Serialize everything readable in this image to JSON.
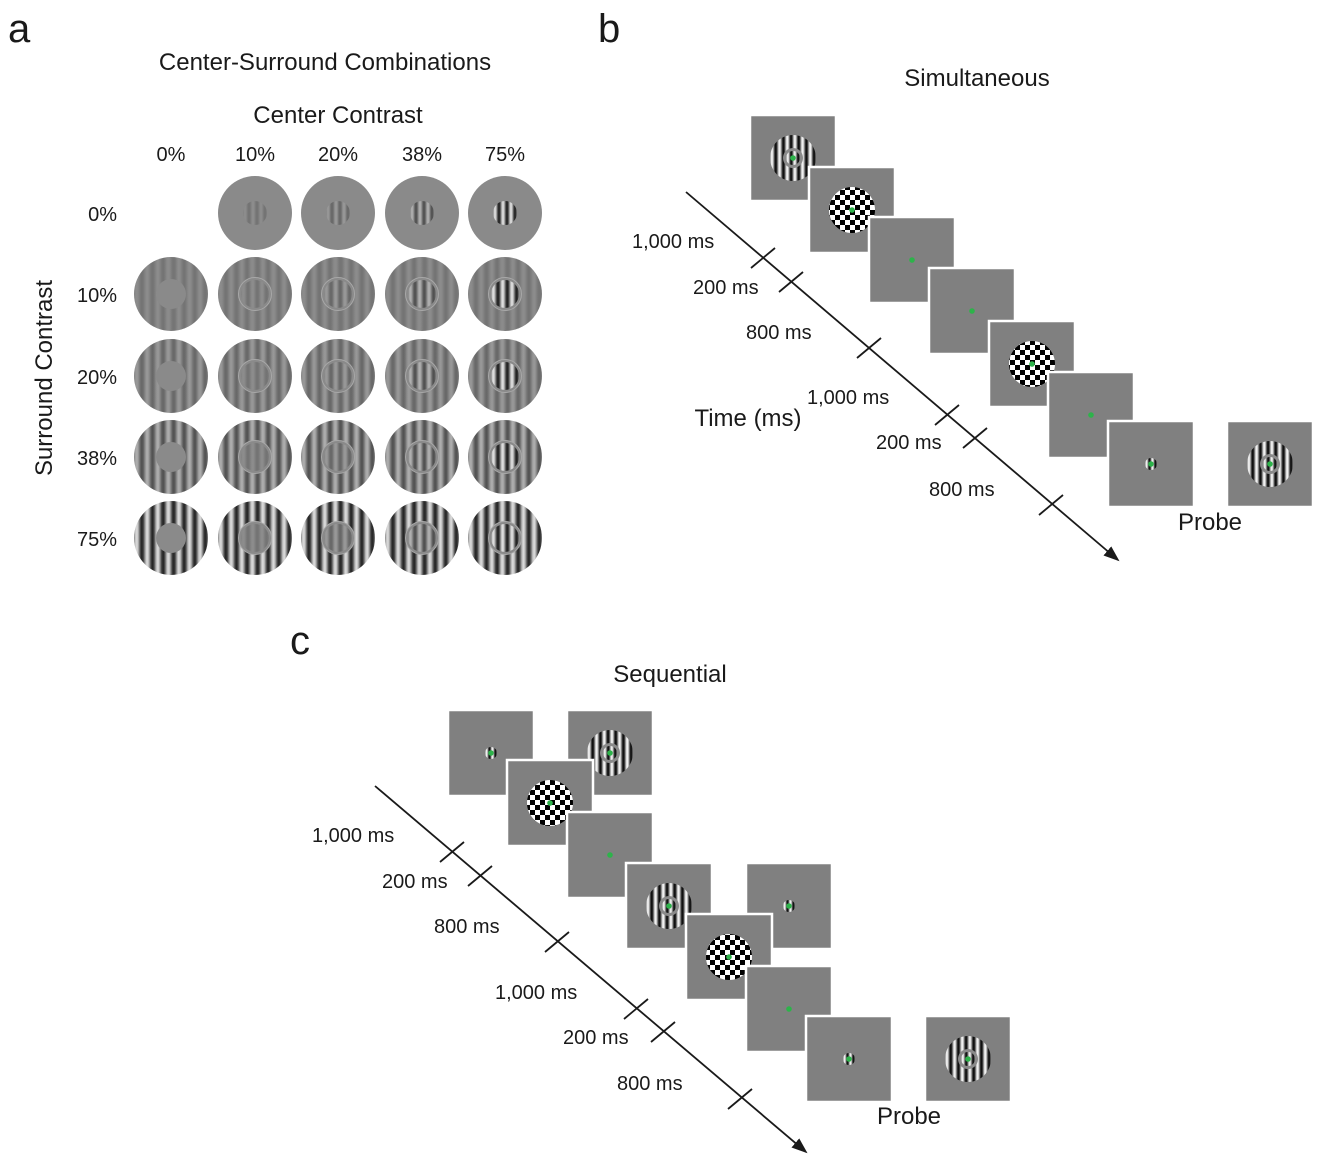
{
  "panel_a": {
    "letter": "a",
    "title": "Center-Surround Combinations",
    "center_axis_label": "Center Contrast",
    "surround_axis_label": "Surround Contrast",
    "center_levels": [
      "0%",
      "10%",
      "20%",
      "38%",
      "75%"
    ],
    "surround_levels": [
      "0%",
      "10%",
      "20%",
      "38%",
      "75%"
    ],
    "contrast_values": [
      0,
      0.1,
      0.2,
      0.38,
      0.75
    ]
  },
  "panel_b": {
    "letter": "b",
    "title": "Simultaneous",
    "time_axis_label": "Time (ms)",
    "durations": [
      "1,000 ms",
      "200 ms",
      "800 ms",
      "1,000 ms",
      "200 ms",
      "800 ms"
    ],
    "frames": [
      {
        "content": "grating-annulus-with-center"
      },
      {
        "content": "checkerboard-mask"
      },
      {
        "content": "fixation-blank"
      },
      {
        "content": "fixation-blank"
      },
      {
        "content": "checkerboard-mask"
      },
      {
        "content": "fixation-blank"
      },
      {
        "content": "center-only-grating"
      }
    ],
    "probe_label": "Probe",
    "probe_content": "grating-annulus-with-center"
  },
  "panel_c": {
    "letter": "c",
    "title": "Sequential",
    "durations": [
      "1,000 ms",
      "200 ms",
      "800 ms",
      "1,000 ms",
      "200 ms",
      "800 ms"
    ],
    "frames": [
      {
        "content": "center-only-grating"
      },
      {
        "content": "grating-annulus-with-center"
      },
      {
        "content": "checkerboard-mask"
      },
      {
        "content": "fixation-blank"
      },
      {
        "content": "grating-annulus-with-center"
      },
      {
        "content": "center-only-grating"
      },
      {
        "content": "checkerboard-mask"
      },
      {
        "content": "fixation-blank"
      },
      {
        "content": "center-only-grating"
      }
    ],
    "probe_label": "Probe",
    "probe_content": "grating-annulus-with-center"
  },
  "colors": {
    "background": "#ffffff",
    "frame_gray": "#808080",
    "fixation": "#2db34a",
    "ink": "#1a1a1a"
  }
}
